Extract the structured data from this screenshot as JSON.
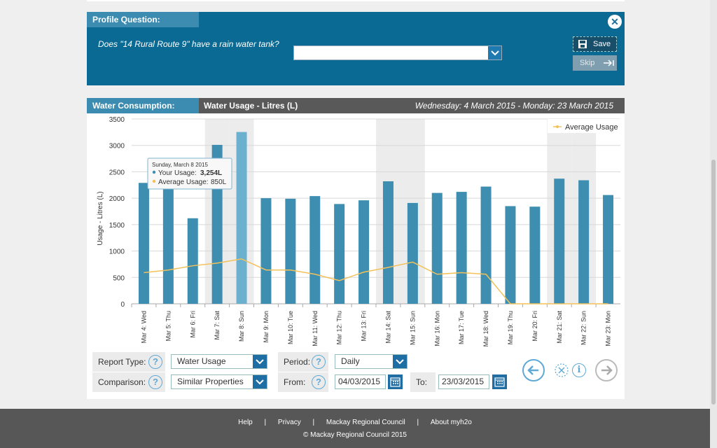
{
  "profile": {
    "tab_label": "Profile Question:",
    "question": "Does \"14 Rural Route 9\" have a rain water tank?",
    "answer_value": "",
    "save_label": "Save",
    "skip_label": "Skip"
  },
  "consumption": {
    "tab_label": "Water Consumption:",
    "title": "Water Usage - Litres (L)",
    "date_range": "Wednesday: 4 March 2015 - Monday: 23 March 2015"
  },
  "tooltip": {
    "date": "Sunday, March 8 2015",
    "your_label": "Your Usage:",
    "your_value": "3,254L",
    "avg_label": "Average Usage:",
    "avg_value": "850L"
  },
  "chart_data": {
    "type": "bar",
    "title": "Water Usage - Litres (L)",
    "ylabel": "Usage - Litres (L)",
    "xlabel": "",
    "ylim": [
      0,
      3500
    ],
    "yticks": [
      0,
      500,
      1000,
      1500,
      2000,
      2500,
      3000,
      3500
    ],
    "categories": [
      "Mar 4: Wed",
      "Mar 5: Thu",
      "Mar 6: Fri",
      "Mar 7: Sat",
      "Mar 8: Sun",
      "Mar 9: Mon",
      "Mar 10: Tue",
      "Mar 11: Wed",
      "Mar 12: Thu",
      "Mar 13: Fri",
      "Mar 14: Sat",
      "Mar 15: Sun",
      "Mar 16: Mon",
      "Mar 17: Tue",
      "Mar 18: Wed",
      "Mar 19: Thu",
      "Mar 20: Fri",
      "Mar 21: Sat",
      "Mar 22: Sun",
      "Mar 23: Mon"
    ],
    "weekend_indices": [
      3,
      4,
      10,
      11,
      17,
      18
    ],
    "highlighted_index": 4,
    "series": [
      {
        "name": "Your Usage",
        "type": "bar",
        "color": "#3d8eb0",
        "values": [
          2290,
          2270,
          1620,
          3010,
          3254,
          2000,
          1990,
          2040,
          1890,
          1960,
          2320,
          1910,
          2100,
          2120,
          2220,
          1850,
          1840,
          2370,
          2340,
          2060
        ]
      },
      {
        "name": "Average Usage",
        "type": "line",
        "color": "#f3c15a",
        "values": [
          590,
          640,
          720,
          770,
          850,
          640,
          640,
          560,
          440,
          600,
          690,
          790,
          560,
          590,
          560,
          0,
          0,
          0,
          0,
          0
        ]
      }
    ],
    "legend": "top-right"
  },
  "controls": {
    "report_type_label": "Report Type:",
    "report_type_value": "Water Usage",
    "comparison_label": "Comparison:",
    "comparison_value": "Similar Properties",
    "period_label": "Period:",
    "period_value": "Daily",
    "from_label": "From:",
    "from_value": "04/03/2015",
    "to_label": "To:",
    "to_value": "23/03/2015",
    "help_glyph": "?"
  },
  "footer": {
    "links": [
      "Help",
      "Privacy",
      "Mackay Regional Council",
      "About myh2o"
    ],
    "separator": "|",
    "copyright": "© Mackay Regional Council 2015"
  }
}
